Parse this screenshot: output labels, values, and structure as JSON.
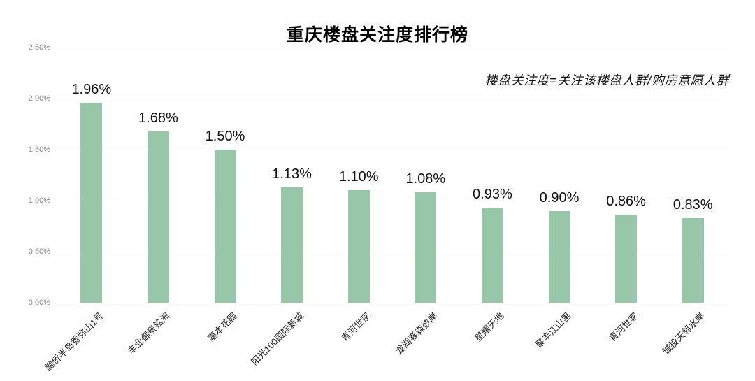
{
  "title": "重庆楼盘关注度排行榜",
  "subtitle": "楼盘关注度=关注该楼盘人群/购房意愿人群",
  "colors": {
    "bar": "#97c6a9",
    "gridline": "#e4e4e4",
    "axis_tick_label": "#8c8c8c",
    "value_label": "#111111",
    "category_label": "#222222",
    "title": "#000000",
    "subtitle": "#111111",
    "background": "#ffffff"
  },
  "chart_data": {
    "type": "bar",
    "title": "重庆楼盘关注度排行榜",
    "subtitle": "楼盘关注度=关注该楼盘人群/购房意愿人群",
    "categories": [
      "融侨半岛香弥山1号",
      "丰业御景铭洲",
      "嘉本花园",
      "阳光100国际新城",
      "青河世家",
      "龙湖春森彼岸",
      "星耀天地",
      "聚丰江山里",
      "青河世家",
      "诚投天邻水岸"
    ],
    "values": [
      1.96,
      1.68,
      1.5,
      1.13,
      1.1,
      1.08,
      0.93,
      0.9,
      0.86,
      0.83
    ],
    "value_labels": [
      "1.96%",
      "1.68%",
      "1.50%",
      "1.13%",
      "1.10%",
      "1.08%",
      "0.93%",
      "0.90%",
      "0.86%",
      "0.83%"
    ],
    "xlabel": "",
    "ylabel": "",
    "ylim": [
      0,
      2.5
    ],
    "yticks": [
      "2.50%",
      "2.00%",
      "1.50%",
      "1.00%",
      "0.50%",
      "0.00%"
    ],
    "ytick_values": [
      2.5,
      2.0,
      1.5,
      1.0,
      0.5,
      0.0
    ],
    "grid": true,
    "legend": false,
    "bar_orientation": "vertical",
    "category_label_rotation_deg": -45
  }
}
